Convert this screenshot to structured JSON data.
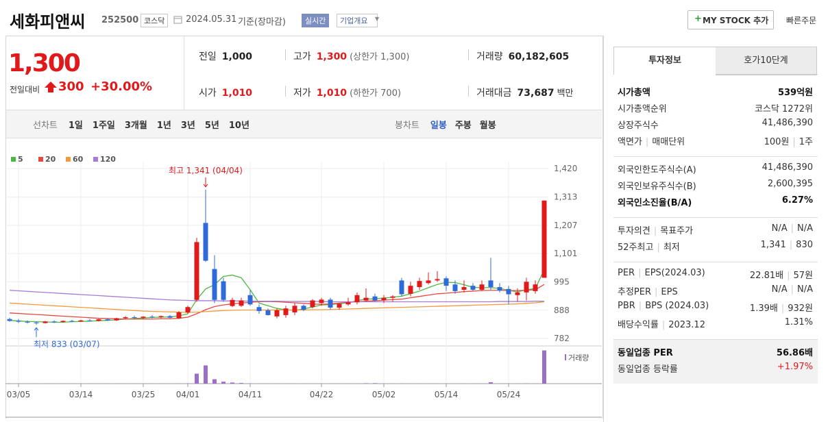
{
  "header": {
    "name": "세화피앤씨",
    "code": "252500",
    "market": "코스닥",
    "date": "2024.05.31",
    "basis": "기준(장마감)",
    "realtime": "실시간",
    "company_info": "기업개요",
    "my_stock": "MY STOCK 추가",
    "quick_order": "빠른주문"
  },
  "quote": {
    "price": "1,300",
    "change_label": "전일대비",
    "change": "300",
    "change_pct": "+30.00%"
  },
  "summary": {
    "rows": [
      [
        {
          "label": "전일",
          "value": "1,000"
        },
        {
          "label": "고가",
          "value": "1,300",
          "note": "(상한가 1,300)"
        },
        {
          "label": "거래량",
          "value": "60,182,605"
        }
      ],
      [
        {
          "label": "시가",
          "value": "1,010"
        },
        {
          "label": "저가",
          "value": "1,010",
          "note": "(하한가 700)"
        },
        {
          "label": "거래대금",
          "value": "73,687",
          "unit": "백만"
        }
      ]
    ]
  },
  "periods": {
    "label": "선차트",
    "items": [
      "1일",
      "1주일",
      "3개월",
      "1년",
      "3년",
      "5년",
      "10년"
    ],
    "candle_label": "봉차트",
    "candle_items": [
      "일봉",
      "주봉",
      "월봉"
    ]
  },
  "chart_data": {
    "type": "candlestick",
    "categories": [
      null,
      "03/05",
      null,
      null,
      null,
      null,
      null,
      null,
      "03/14",
      null,
      null,
      null,
      null,
      null,
      null,
      "03/25",
      null,
      null,
      null,
      null,
      "04/01",
      null,
      null,
      null,
      null,
      null,
      null,
      "04/11",
      null,
      null,
      null,
      null,
      null,
      null,
      null,
      "04/22",
      null,
      null,
      null,
      null,
      null,
      null,
      "05/02",
      null,
      null,
      null,
      null,
      null,
      null,
      "05/14",
      null,
      null,
      null,
      null,
      null,
      null,
      "05/24",
      null,
      null,
      null,
      null
    ],
    "ohlc": [
      [
        855,
        860,
        845,
        848
      ],
      [
        848,
        855,
        840,
        845
      ],
      [
        845,
        850,
        838,
        842
      ],
      [
        842,
        846,
        833,
        840
      ],
      [
        840,
        848,
        838,
        846
      ],
      [
        846,
        850,
        840,
        844
      ],
      [
        844,
        850,
        842,
        848
      ],
      [
        848,
        852,
        843,
        846
      ],
      [
        846,
        852,
        844,
        850
      ],
      [
        850,
        855,
        846,
        848
      ],
      [
        848,
        856,
        846,
        854
      ],
      [
        854,
        858,
        848,
        850
      ],
      [
        850,
        860,
        848,
        858
      ],
      [
        858,
        866,
        854,
        862
      ],
      [
        862,
        868,
        856,
        860
      ],
      [
        860,
        866,
        855,
        864
      ],
      [
        864,
        870,
        858,
        862
      ],
      [
        862,
        868,
        858,
        866
      ],
      [
        866,
        870,
        858,
        860
      ],
      [
        858,
        885,
        855,
        880
      ],
      [
        880,
        905,
        875,
        900
      ],
      [
        927,
        1160,
        920,
        1144
      ],
      [
        1216,
        1341,
        1070,
        1074
      ],
      [
        1043,
        1095,
        915,
        927
      ],
      [
        997,
        1010,
        920,
        927
      ],
      [
        904,
        935,
        900,
        927
      ],
      [
        905,
        935,
        900,
        925
      ],
      [
        945,
        965,
        905,
        910
      ],
      [
        900,
        910,
        875,
        885
      ],
      [
        888,
        895,
        868,
        870
      ],
      [
        865,
        895,
        858,
        888
      ],
      [
        870,
        905,
        860,
        895
      ],
      [
        880,
        915,
        870,
        905
      ],
      [
        905,
        910,
        885,
        890
      ],
      [
        900,
        930,
        895,
        925
      ],
      [
        915,
        935,
        905,
        928
      ],
      [
        928,
        935,
        890,
        898
      ],
      [
        898,
        915,
        890,
        912
      ],
      [
        910,
        935,
        905,
        918
      ],
      [
        918,
        955,
        910,
        945
      ],
      [
        925,
        970,
        920,
        935
      ],
      [
        940,
        950,
        920,
        925
      ],
      [
        925,
        945,
        915,
        935
      ],
      [
        935,
        945,
        920,
        940
      ],
      [
        1000,
        1010,
        940,
        948
      ],
      [
        950,
        995,
        940,
        980
      ],
      [
        975,
        1010,
        965,
        998
      ],
      [
        990,
        1030,
        985,
        1000
      ],
      [
        1000,
        1035,
        995,
        1005
      ],
      [
        1008,
        1015,
        960,
        980
      ],
      [
        985,
        1000,
        950,
        960
      ],
      [
        965,
        1000,
        955,
        975
      ],
      [
        980,
        990,
        960,
        965
      ],
      [
        965,
        1000,
        960,
        985
      ],
      [
        1000,
        1085,
        965,
        975
      ],
      [
        975,
        990,
        955,
        962
      ],
      [
        968,
        980,
        910,
        948
      ],
      [
        945,
        970,
        920,
        955
      ],
      [
        955,
        1010,
        925,
        995
      ],
      [
        960,
        1000,
        950,
        985
      ],
      [
        1010,
        1300,
        1010,
        1300
      ]
    ],
    "up_color": "#e0191b",
    "down_color": "#2f6bd8",
    "series": [
      {
        "name": "5",
        "color": "#4cb944",
        "values": [
          850,
          848,
          846,
          845,
          844,
          843,
          843,
          845,
          846,
          847,
          849,
          850,
          852,
          855,
          857,
          859,
          861,
          862,
          863,
          867,
          875,
          928,
          968,
          984,
          1015,
          1020,
          1010,
          965,
          915,
          905,
          895,
          890,
          888,
          893,
          900,
          908,
          909,
          913,
          916,
          924,
          930,
          931,
          934,
          937,
          941,
          950,
          960,
          973,
          985,
          993,
          992,
          984,
          974,
          973,
          973,
          970,
          963,
          957,
          965,
          970,
          1040
        ]
      },
      {
        "name": "20",
        "color": "#e8473f",
        "values": [
          878,
          876,
          874,
          872,
          870,
          868,
          866,
          864,
          862,
          860,
          858,
          857,
          856,
          855,
          855,
          855,
          855,
          856,
          856,
          858,
          862,
          875,
          890,
          902,
          908,
          912,
          915,
          918,
          920,
          921,
          920,
          918,
          916,
          914,
          912,
          910,
          912,
          915,
          918,
          920,
          922,
          924,
          926,
          928,
          930,
          935,
          940,
          945,
          950,
          952,
          955,
          958,
          960,
          962,
          963,
          963,
          962,
          962,
          963,
          965,
          985
        ]
      },
      {
        "name": "60",
        "color": "#f39a3a",
        "values": [
          915,
          913,
          911,
          909,
          907,
          905,
          903,
          901,
          899,
          897,
          895,
          893,
          891,
          889,
          887,
          885,
          884,
          883,
          882,
          881,
          880,
          881,
          883,
          885,
          887,
          888,
          889,
          889,
          889,
          889,
          889,
          889,
          889,
          889,
          890,
          890,
          891,
          892,
          893,
          894,
          895,
          896,
          897,
          898,
          899,
          900,
          901,
          902,
          903,
          904,
          905,
          906,
          907,
          908,
          909,
          910,
          911,
          912,
          914,
          916,
          920
        ]
      },
      {
        "name": "120",
        "color": "#a77bd6",
        "values": [
          963,
          961,
          959,
          957,
          955,
          953,
          951,
          949,
          947,
          945,
          943,
          941,
          939,
          937,
          935,
          933,
          931,
          929,
          927,
          926,
          925,
          924,
          924,
          924,
          923,
          923,
          923,
          922,
          922,
          922,
          922,
          921,
          921,
          921,
          921,
          921,
          920,
          920,
          920,
          920,
          920,
          920,
          920,
          920,
          920,
          920,
          920,
          920,
          920,
          920,
          920,
          920,
          920,
          920,
          920,
          921,
          921,
          921,
          921,
          922,
          922
        ]
      }
    ],
    "volume": {
      "name": "거래량",
      "color": "#9b6fc6",
      "values": [
        300000,
        300000,
        300000,
        300000,
        300000,
        300000,
        300000,
        300000,
        300000,
        300000,
        300000,
        300000,
        300000,
        300000,
        300000,
        300000,
        300000,
        300000,
        300000,
        400000,
        600000,
        18000000,
        33000000,
        8000000,
        3500000,
        2000000,
        1200000,
        500000,
        300000,
        300000,
        300000,
        300000,
        300000,
        300000,
        300000,
        300000,
        300000,
        300000,
        300000,
        300000,
        800000,
        900000,
        300000,
        300000,
        400000,
        300000,
        300000,
        300000,
        300000,
        300000,
        300000,
        300000,
        300000,
        300000,
        2500000,
        300000,
        400000,
        300000,
        500000,
        300000,
        60182605
      ]
    },
    "volume_ylim": [
      0,
      62000000
    ],
    "ylim": [
      754,
      1446
    ],
    "yticks": [
      {
        "value": 1420,
        "label": "1,420"
      },
      {
        "value": 1313,
        "label": "1,313"
      },
      {
        "value": 1207,
        "label": "1,207"
      },
      {
        "value": 1101,
        "label": "1,101"
      },
      995,
      888,
      782
    ],
    "annotations": [
      {
        "text": "최고 1,341 (04/04)",
        "index": 22,
        "value": 1341
      },
      {
        "text": "최저 833 (03/07)",
        "index": 3,
        "value": 833
      }
    ],
    "grid": true
  },
  "side": {
    "tabs": [
      "투자정보",
      "호가10단계"
    ],
    "groups": [
      [
        {
          "labels": [
            "시가총액"
          ],
          "values": [
            "539억원"
          ],
          "emphasis": true
        },
        {
          "labels": [
            "시가총액순위"
          ],
          "values": [
            "코스닥 1272위"
          ]
        },
        {
          "labels": [
            "상장주식수"
          ],
          "values": [
            "41,486,390"
          ]
        },
        {
          "labels": [
            "액면가",
            "매매단위"
          ],
          "values": [
            "100원",
            "1주"
          ]
        }
      ],
      [
        {
          "labels": [
            "외국인한도주식수(A)"
          ],
          "values": [
            "41,486,390"
          ]
        },
        {
          "labels": [
            "외국인보유주식수(B)"
          ],
          "values": [
            "2,600,395"
          ]
        },
        {
          "labels": [
            "외국인소진율(B/A)"
          ],
          "values": [
            "6.27%"
          ],
          "emphasis": true
        }
      ],
      [
        {
          "labels": [
            "투자의견",
            "목표주가"
          ],
          "values": [
            "N/A",
            "N/A"
          ]
        },
        {
          "labels": [
            "52주최고",
            "최저"
          ],
          "values": [
            "1,341",
            "830"
          ]
        }
      ],
      [
        {
          "labels": [
            "PER",
            "EPS(2024.03)"
          ],
          "values": [
            "22.81배",
            "57원"
          ]
        },
        {
          "labels": [
            "추정PER",
            "EPS"
          ],
          "values": [
            "N/A",
            "N/A"
          ]
        },
        {
          "labels": [
            "PBR",
            "BPS (2024.03)"
          ],
          "values": [
            "1.39배",
            "932원"
          ]
        },
        {
          "labels": [
            "배당수익률",
            "2023.12"
          ],
          "values": [
            "1.31%"
          ]
        }
      ],
      [
        {
          "labels": [
            "동일업종 PER"
          ],
          "values": [
            "56.86배"
          ],
          "emphasis": true
        },
        {
          "labels": [
            "동일업종 등락률"
          ],
          "values": [
            "+1.97%"
          ],
          "value_color": "#e0191b"
        }
      ]
    ]
  }
}
